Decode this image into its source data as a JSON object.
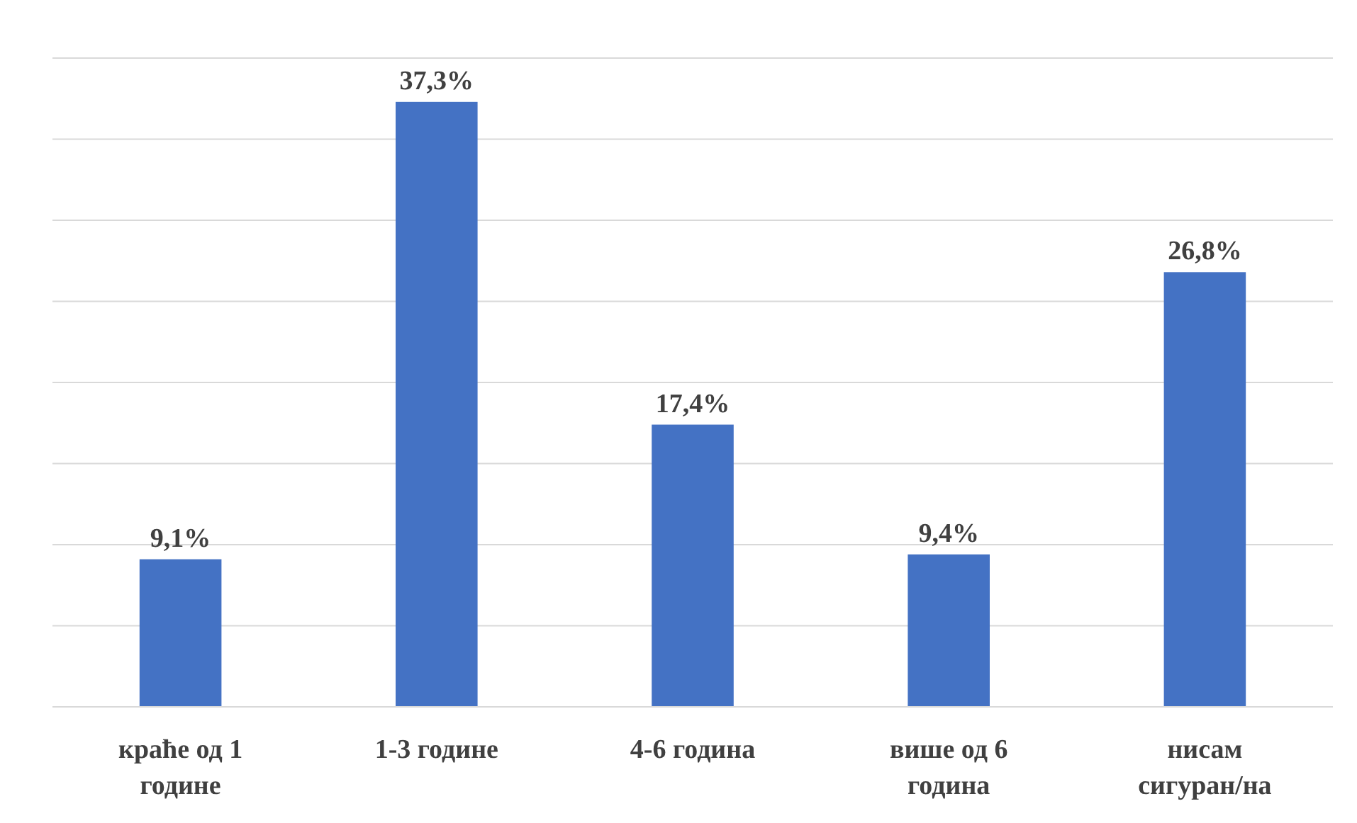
{
  "chart_data": {
    "type": "bar",
    "categories": [
      "краће од 1 године",
      "1-3 године",
      "4-6 година",
      "више од 6 година",
      "нисам сигуран/на"
    ],
    "values": [
      9.1,
      37.3,
      17.4,
      9.4,
      26.8
    ],
    "value_labels": [
      "9,1%",
      "37,3%",
      "17,4%",
      "9,4%",
      "26,8%"
    ],
    "color": "#4472c4",
    "ylim": [
      0,
      40
    ],
    "yticks": [
      {
        "value": 0,
        "label": null
      },
      {
        "value": 5,
        "label": null
      },
      {
        "value": 10,
        "label": null
      },
      {
        "value": 15,
        "label": null
      },
      {
        "value": 20,
        "label": null
      },
      {
        "value": 25,
        "label": null
      },
      {
        "value": 30,
        "label": null
      },
      {
        "value": 35,
        "label": null
      },
      {
        "value": 40,
        "label": null
      }
    ],
    "grid": "y",
    "tick_labels": "x"
  }
}
